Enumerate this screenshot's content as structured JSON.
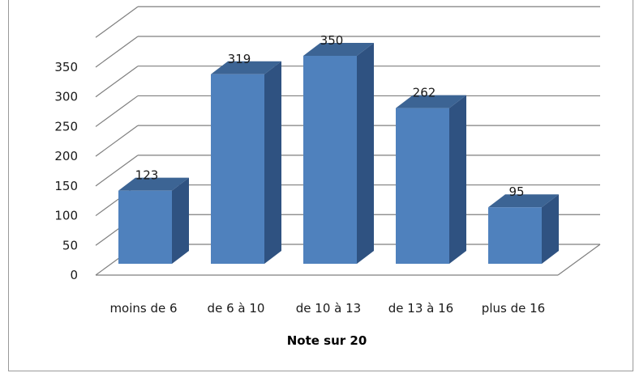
{
  "chart_data": {
    "type": "bar",
    "title": "",
    "xlabel": "Note sur 20",
    "ylabel": "",
    "categories": [
      "moins de 6",
      "de 6 à 10",
      "de 10 à 13",
      "de 13 à 16",
      "plus de 16"
    ],
    "values": [
      123,
      319,
      350,
      262,
      95
    ],
    "data_labels": [
      "123",
      "319",
      "350",
      "262",
      "95"
    ],
    "yticks": [
      "0",
      "50",
      "100",
      "150",
      "200",
      "250",
      "300",
      "350"
    ],
    "ylim": [
      0,
      400
    ],
    "grid": true,
    "style": "3d-column",
    "colors": {
      "bar_front": "#4f81bd",
      "bar_side": "#2f5281",
      "bar_top": "#3c6494",
      "grid": "#7f7f7f"
    }
  }
}
